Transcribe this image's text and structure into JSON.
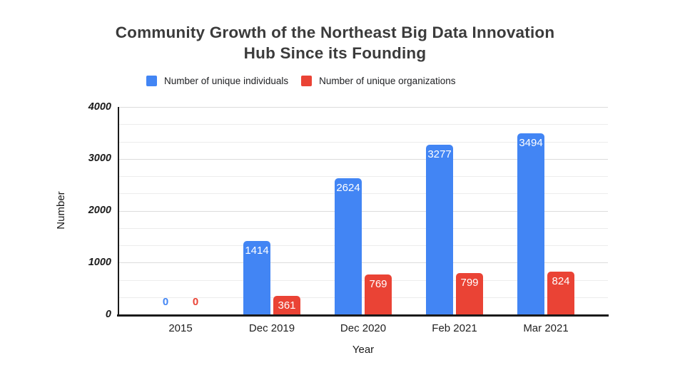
{
  "title": {
    "line1": "Community Growth of the Northeast Big Data Innovation",
    "line2": "Hub Since its Founding"
  },
  "legend": [
    {
      "label": "Number of unique individuals",
      "color": "#4285F4"
    },
    {
      "label": "Number of unique organizations",
      "color": "#EA4335"
    }
  ],
  "chart_data": {
    "type": "bar",
    "categories": [
      "2015",
      "Dec 2019",
      "Dec 2020",
      "Feb 2021",
      "Mar 2021"
    ],
    "series": [
      {
        "name": "Number of unique individuals",
        "color": "#4285F4",
        "values": [
          0,
          1414,
          2624,
          3277,
          3494
        ]
      },
      {
        "name": "Number of unique organizations",
        "color": "#EA4335",
        "values": [
          0,
          361,
          769,
          799,
          824
        ]
      }
    ],
    "title": "Community Growth of the Northeast Big Data Innovation Hub Since its Founding",
    "xlabel": "Year",
    "ylabel": "Number",
    "ylim": [
      0,
      4000
    ],
    "yticks": [
      0,
      1000,
      2000,
      3000,
      4000
    ],
    "grid": true,
    "gridline_divisions": 12,
    "legend_position": "top",
    "data_label_color": "#ffffff",
    "axis_color": "#1a1a1a",
    "gridline_color_major": "#dcdcdc",
    "gridline_color_minor": "#ececec"
  }
}
